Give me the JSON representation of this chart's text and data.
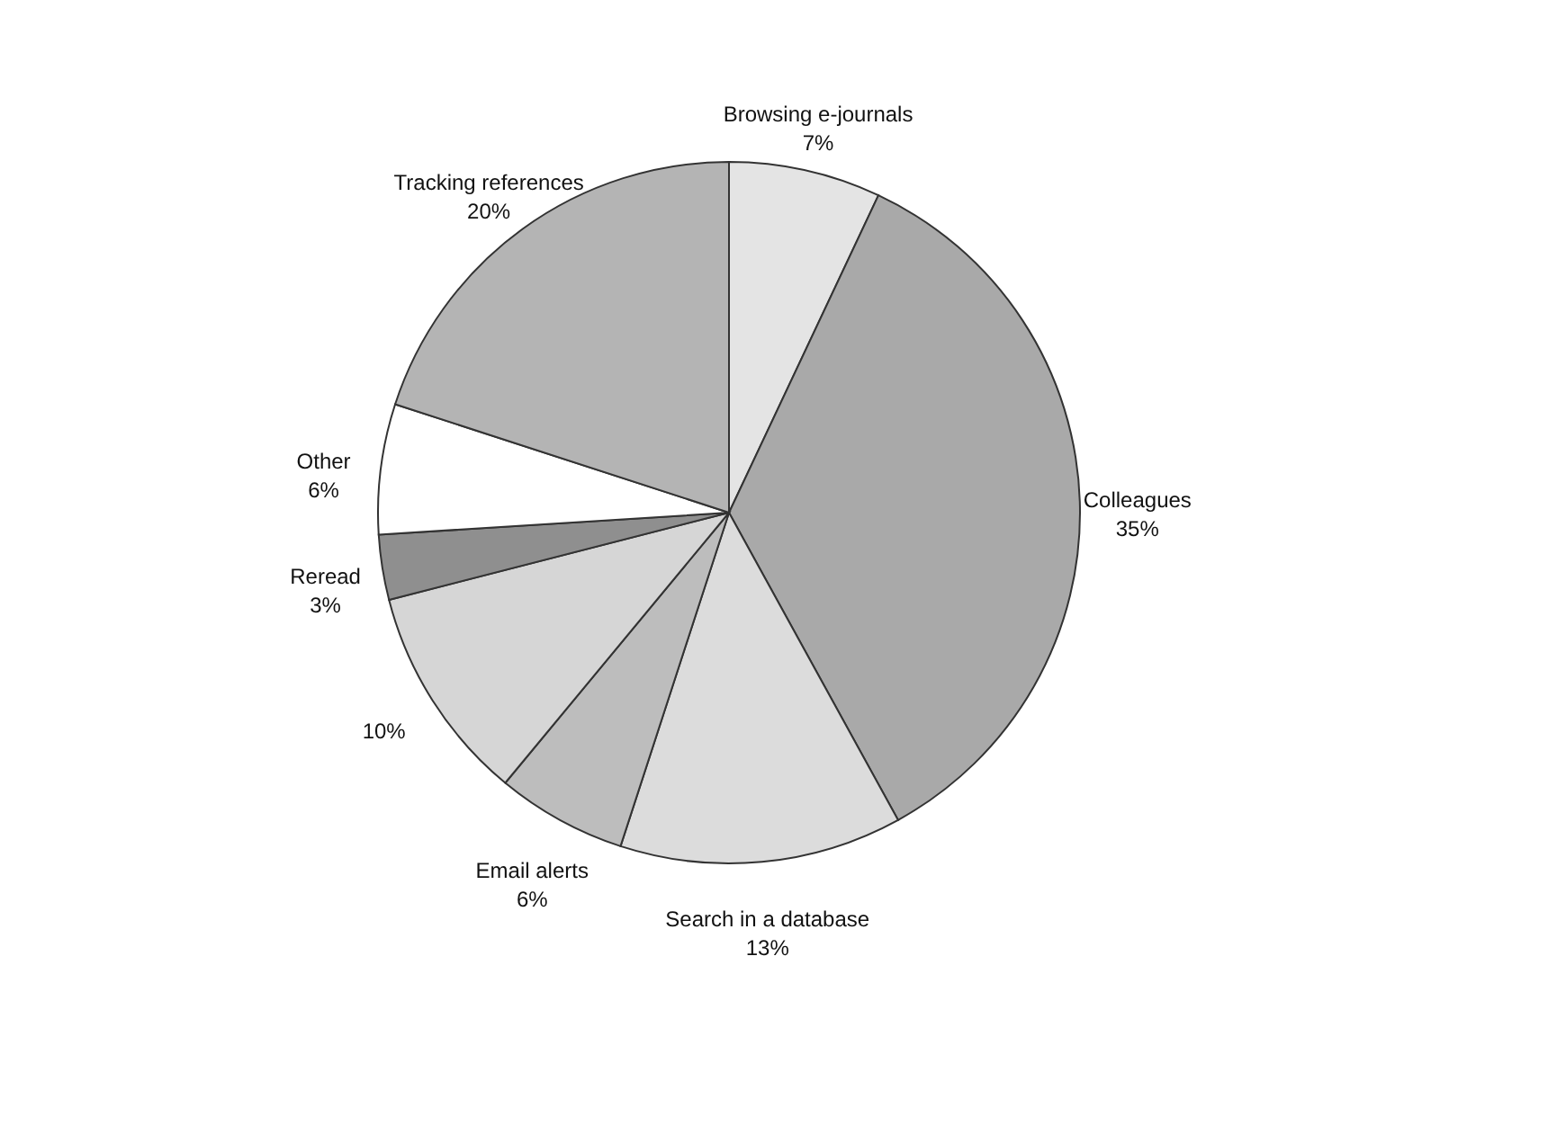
{
  "chart_data": {
    "type": "pie",
    "categories": [
      "Browsing e-journals",
      "Colleagues",
      "Search in a database",
      "Email alerts",
      null,
      "Reread",
      "Other",
      "Tracking references"
    ],
    "values": [
      7,
      35,
      13,
      6,
      10,
      3,
      6,
      20
    ],
    "value_labels": [
      "7%",
      "35%",
      "13%",
      "6%",
      "10%",
      "3%",
      "6%",
      "20%"
    ],
    "colors": [
      "#e4e4e4",
      "#a9a9a9",
      "#dcdcdc",
      "#bdbdbd",
      "#d6d6d6",
      "#8f8f8f",
      "#ffffff",
      "#b4b4b4"
    ],
    "legend": false
  }
}
